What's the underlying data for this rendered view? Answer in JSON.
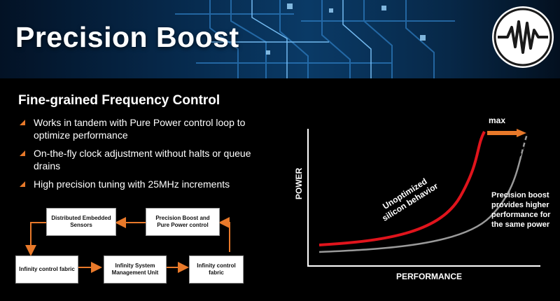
{
  "header": {
    "title": "Precision Boost"
  },
  "section": {
    "heading": "Fine-grained Frequency Control"
  },
  "bullets": [
    {
      "text": "Works in tandem with Pure Power control loop to optimize performance"
    },
    {
      "text": "On-the-fly clock adjustment without halts or queue drains"
    },
    {
      "text": "High precision tuning with 25MHz increments"
    }
  ],
  "flow": {
    "sensors": "Distributed Embedded Sensors",
    "boost_control": "Precision Boost and Pure Power control",
    "fabric_left": "Infinity control fabric",
    "smu": "Infinity System Management Unit",
    "fabric_right": "Infinity control fabric"
  },
  "graph": {
    "y_label": "POWER",
    "x_label": "PERFORMANCE",
    "max_label": "max",
    "red_curve_label": "Unoptimized silicon behavior",
    "gray_curve_label": "Precision boost provides higher performance for the same power"
  },
  "colors": {
    "accent": "#e8792a",
    "red_curve": "#e0141c",
    "gray_curve": "#9a9a9a"
  },
  "icons": {
    "logo": "waveform-logo-icon",
    "bullet": "triangle-bullet-icon"
  }
}
